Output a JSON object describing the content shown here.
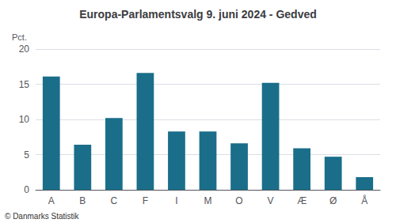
{
  "chart_data": {
    "type": "bar",
    "title": "Europa-Parlamentsvalg 9. juni 2024 - Gedved",
    "categories": [
      "A",
      "B",
      "C",
      "F",
      "I",
      "M",
      "O",
      "V",
      "Æ",
      "Ø",
      "Å"
    ],
    "values": [
      16.1,
      6.4,
      10.2,
      16.6,
      8.3,
      8.3,
      6.6,
      15.2,
      5.9,
      4.7,
      1.8
    ],
    "color": "#1a6e8a",
    "ylabel": "Pct.",
    "ylim": [
      0,
      20
    ],
    "yticks": [
      0,
      5,
      10,
      15,
      20
    ],
    "grid": true,
    "annotations": [
      "© Danmarks Statistik"
    ]
  }
}
